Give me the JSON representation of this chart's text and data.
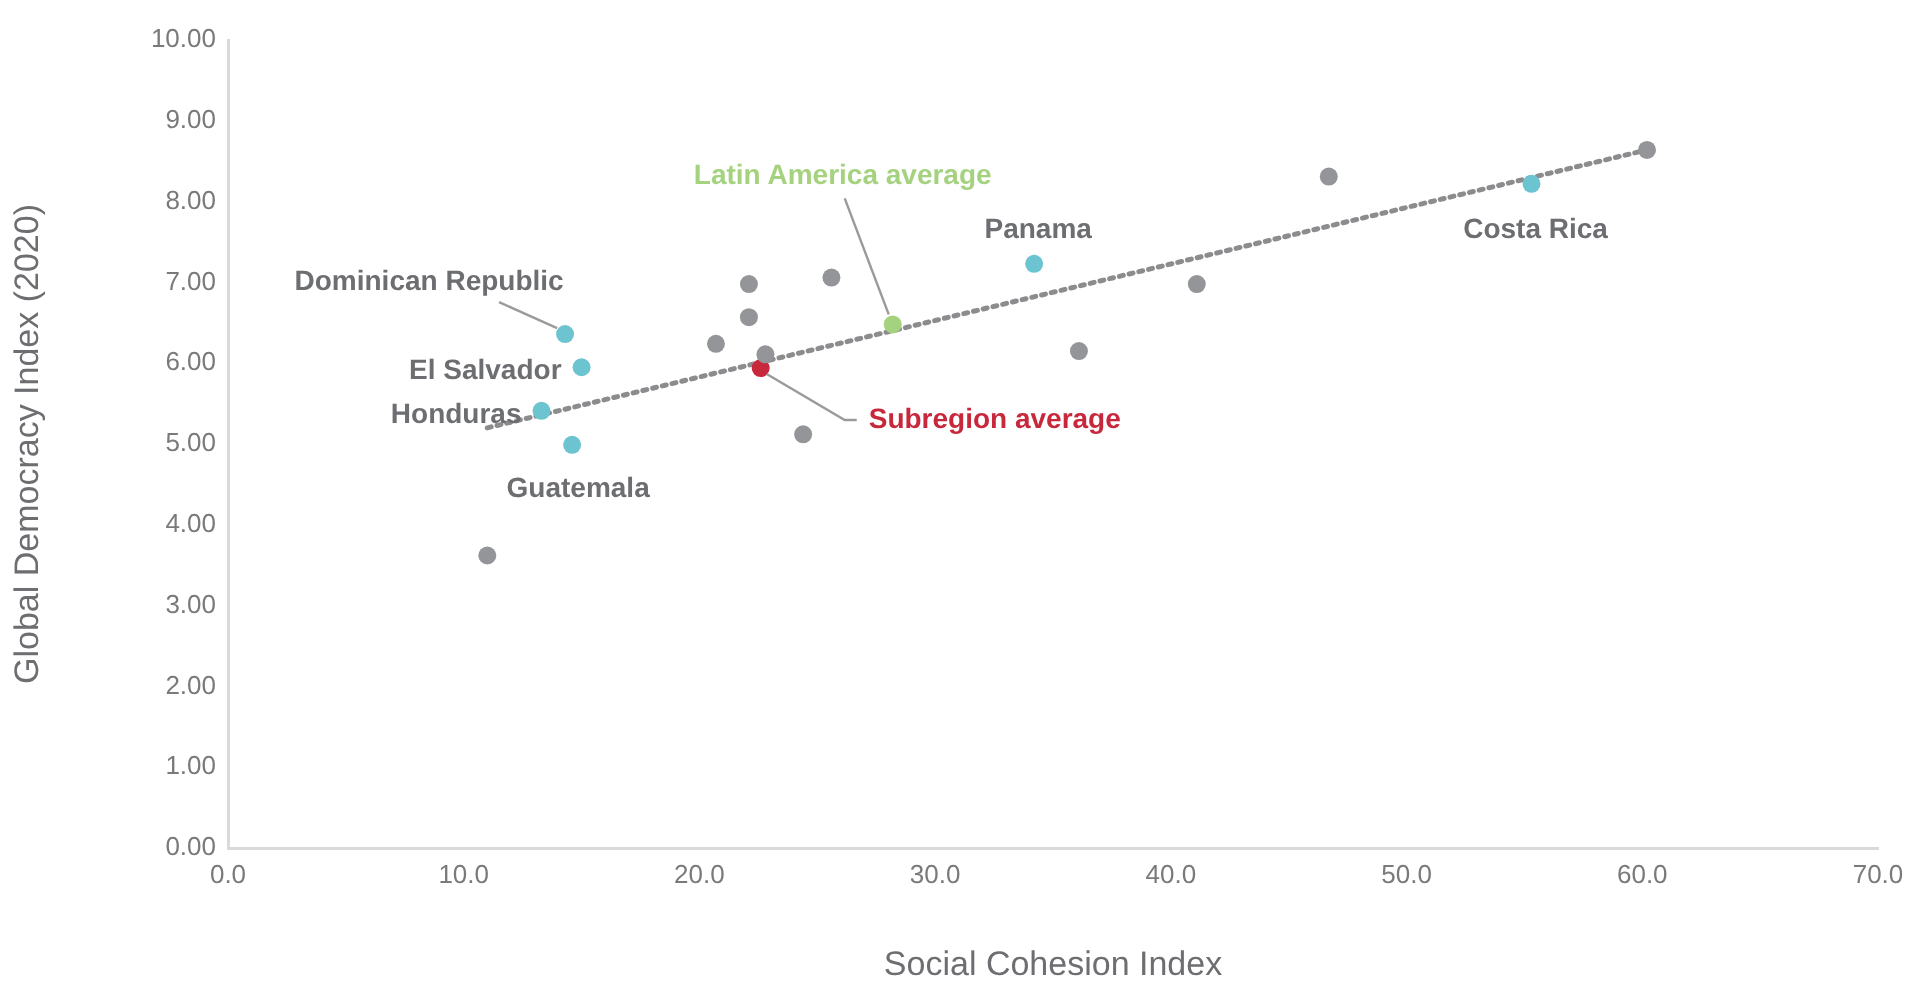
{
  "chart_data": {
    "type": "scatter",
    "xlabel": "Social Cohesion Index",
    "ylabel": "Global Democracy Index (2020)",
    "xlim": [
      0,
      70
    ],
    "xticks": [
      {
        "value": 0,
        "label": "0.0"
      },
      {
        "value": 10,
        "label": "10.0"
      },
      {
        "value": 20,
        "label": "20.0"
      },
      {
        "value": 30,
        "label": "30.0"
      },
      {
        "value": 40,
        "label": "40.0"
      },
      {
        "value": 50,
        "label": "50.0"
      },
      {
        "value": 60,
        "label": "60.0"
      },
      {
        "value": 70,
        "label": "70.0"
      }
    ],
    "ylim": [
      0,
      10
    ],
    "yticks": [
      {
        "value": 0,
        "label": "0.00"
      },
      {
        "value": 1,
        "label": "1.00"
      },
      {
        "value": 2,
        "label": "2.00"
      },
      {
        "value": 3,
        "label": "3.00"
      },
      {
        "value": 4,
        "label": "4.00"
      },
      {
        "value": 5,
        "label": "5.00"
      },
      {
        "value": 6,
        "label": "6.00"
      },
      {
        "value": 7,
        "label": "7.00"
      },
      {
        "value": 8,
        "label": "8.00"
      },
      {
        "value": 9,
        "label": "9.00"
      },
      {
        "value": 10,
        "label": "10.00"
      }
    ],
    "marker": "circle",
    "series": [
      {
        "color": "#939598",
        "x": [
          11.0,
          20.7,
          22.1,
          22.1,
          22.8,
          24.4,
          25.6,
          36.1,
          41.1,
          46.7,
          60.2
        ],
        "values": [
          3.62,
          6.24,
          6.98,
          6.57,
          6.11,
          5.12,
          7.06,
          6.15,
          6.98,
          8.31,
          8.64
        ]
      },
      {
        "color": "#6cc4d0",
        "x": [
          14.3,
          15.0,
          13.3,
          14.6,
          34.2,
          55.3
        ],
        "values": [
          6.36,
          5.95,
          5.41,
          4.99,
          7.23,
          8.22
        ]
      },
      {
        "name": "Latin America average",
        "color": "#a5d27f",
        "x": [
          28.2
        ],
        "values": [
          6.48
        ]
      },
      {
        "name": "Subregion average",
        "color": "#c8283c",
        "x": [
          22.6
        ],
        "values": [
          5.94
        ]
      },
      {
        "type": "line",
        "line_style": "dotted",
        "marker": "none",
        "color": "#8c8c8f",
        "x": [
          11.0,
          60.2
        ],
        "values": [
          5.2,
          8.64
        ]
      }
    ],
    "annotations": [
      {
        "text": "Dominican Republic",
        "x": 14.3,
        "y": 6.36
      },
      {
        "text": "El Salvador",
        "x": 15.0,
        "y": 5.95
      },
      {
        "text": "Honduras",
        "x": 13.3,
        "y": 5.41
      },
      {
        "text": "Guatemala",
        "x": 14.6,
        "y": 4.99
      },
      {
        "text": "Panama",
        "x": 34.2,
        "y": 7.23
      },
      {
        "text": "Costa Rica",
        "x": 55.3,
        "y": 8.22
      }
    ]
  }
}
